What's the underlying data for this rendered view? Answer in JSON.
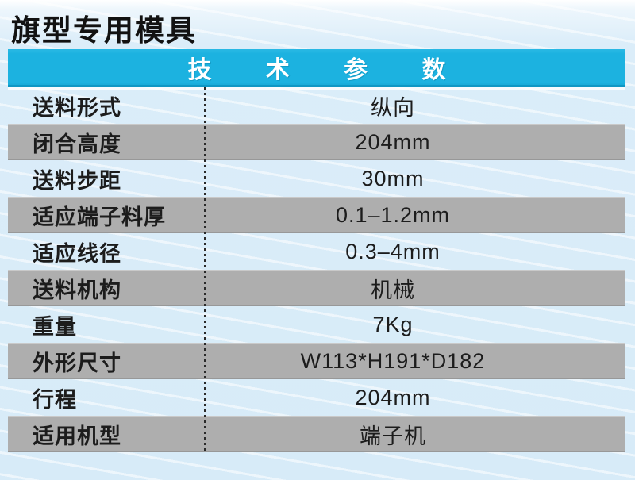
{
  "page": {
    "title": "旗型专用模具"
  },
  "table": {
    "header": "技 术 参 数",
    "rows": [
      {
        "label": "送料形式",
        "value": "纵向"
      },
      {
        "label": "闭合高度",
        "value": "204mm"
      },
      {
        "label": "送料步距",
        "value": "30mm"
      },
      {
        "label": "适应端子料厚",
        "value": "0.1–1.2mm"
      },
      {
        "label": "适应线径",
        "value": "0.3–4mm"
      },
      {
        "label": "送料机构",
        "value": "机械"
      },
      {
        "label": "重量",
        "value": "7Kg"
      },
      {
        "label": "外形尺寸",
        "value": "W113*H191*D182"
      },
      {
        "label": "行程",
        "value": "204mm"
      },
      {
        "label": "适用机型",
        "value": "端子机"
      }
    ],
    "colors": {
      "header_bg": "#1cb2e0",
      "header_text": "#ffffff",
      "alt_row_bg": "#aeaeae",
      "page_bg": "#d7ebf8",
      "text": "#1c1c1c"
    }
  }
}
